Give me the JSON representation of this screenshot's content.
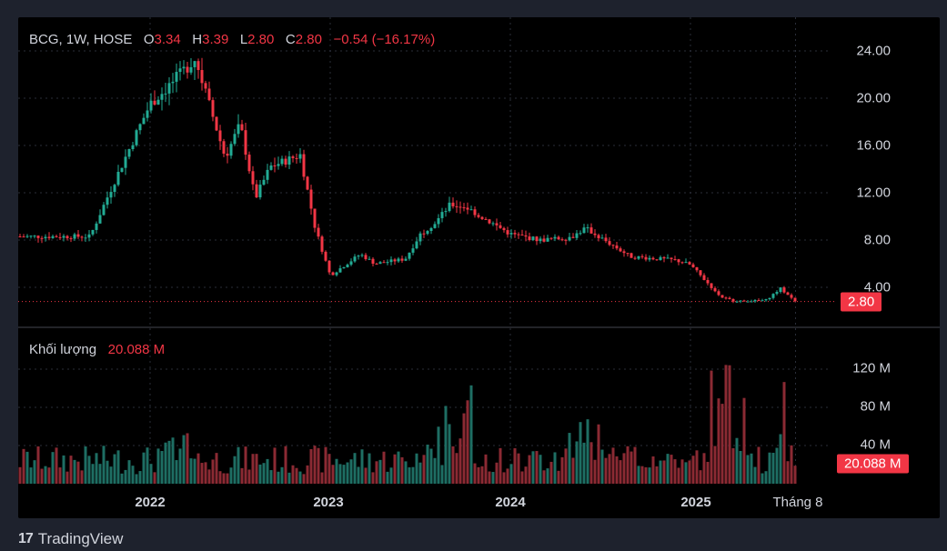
{
  "legend": {
    "symbol": "BCG, 1W, HOSE",
    "open_label": "O",
    "open": "3.34",
    "high_label": "H",
    "high": "3.39",
    "low_label": "L",
    "low": "2.80",
    "close_label": "C",
    "close": "2.80",
    "change": "−0.54 (−16.17%)"
  },
  "volume_legend": {
    "label": "Khối lượng",
    "value": "20.088 M"
  },
  "price_badge": "2.80",
  "volume_badge": "20.088 M",
  "footer": {
    "brand": "TradingView",
    "logo": "17"
  },
  "colors": {
    "up": "#22ab94",
    "down": "#f23645",
    "up_vol": "#1e6e63",
    "down_vol": "#8b2a33",
    "background": "#000000",
    "grid": "#2a2e39"
  },
  "chart_data": [
    {
      "type": "candlestick",
      "title": "BCG, 1W, HOSE",
      "y_ticks": [
        "24.00",
        "20.00",
        "16.00",
        "12.00",
        "8.00",
        "4.00"
      ],
      "ylim": [
        1.5,
        26
      ],
      "x_labels": [
        "2022",
        "2023",
        "2024",
        "2025",
        "Tháng 8"
      ],
      "last_close": 2.8,
      "series": [
        {
          "name": "Price",
          "anchors_x": [
            "2021-05",
            "2021-09",
            "2021-10",
            "2021-12",
            "2022-01",
            "2022-03",
            "2022-04",
            "2022-06",
            "2022-07",
            "2022-08",
            "2022-09",
            "2022-11",
            "2022-12",
            "2023-01",
            "2023-03",
            "2023-04",
            "2023-06",
            "2023-07",
            "2023-08",
            "2023-09",
            "2023-10",
            "2024-01",
            "2024-03",
            "2024-05",
            "2024-06",
            "2024-09",
            "2024-12",
            "2025-01",
            "2025-03",
            "2025-04",
            "2025-06",
            "2025-07",
            "2025-08"
          ],
          "anchors_close": [
            8.3,
            8.3,
            11.2,
            16.8,
            19.5,
            22.0,
            23.4,
            15.0,
            17.8,
            11.5,
            14.2,
            15.2,
            9.0,
            5.0,
            6.8,
            6.0,
            6.4,
            8.5,
            9.5,
            11.0,
            10.8,
            8.5,
            8.0,
            8.2,
            9.0,
            6.6,
            6.3,
            5.9,
            3.2,
            2.8,
            2.9,
            3.9,
            2.8
          ]
        }
      ]
    },
    {
      "type": "bar",
      "title": "Khối lượng",
      "y_ticks": [
        "120 M",
        "80 M",
        "40 M"
      ],
      "ylim": [
        0,
        150
      ],
      "unit": "M",
      "last_value": 20.088
    }
  ]
}
